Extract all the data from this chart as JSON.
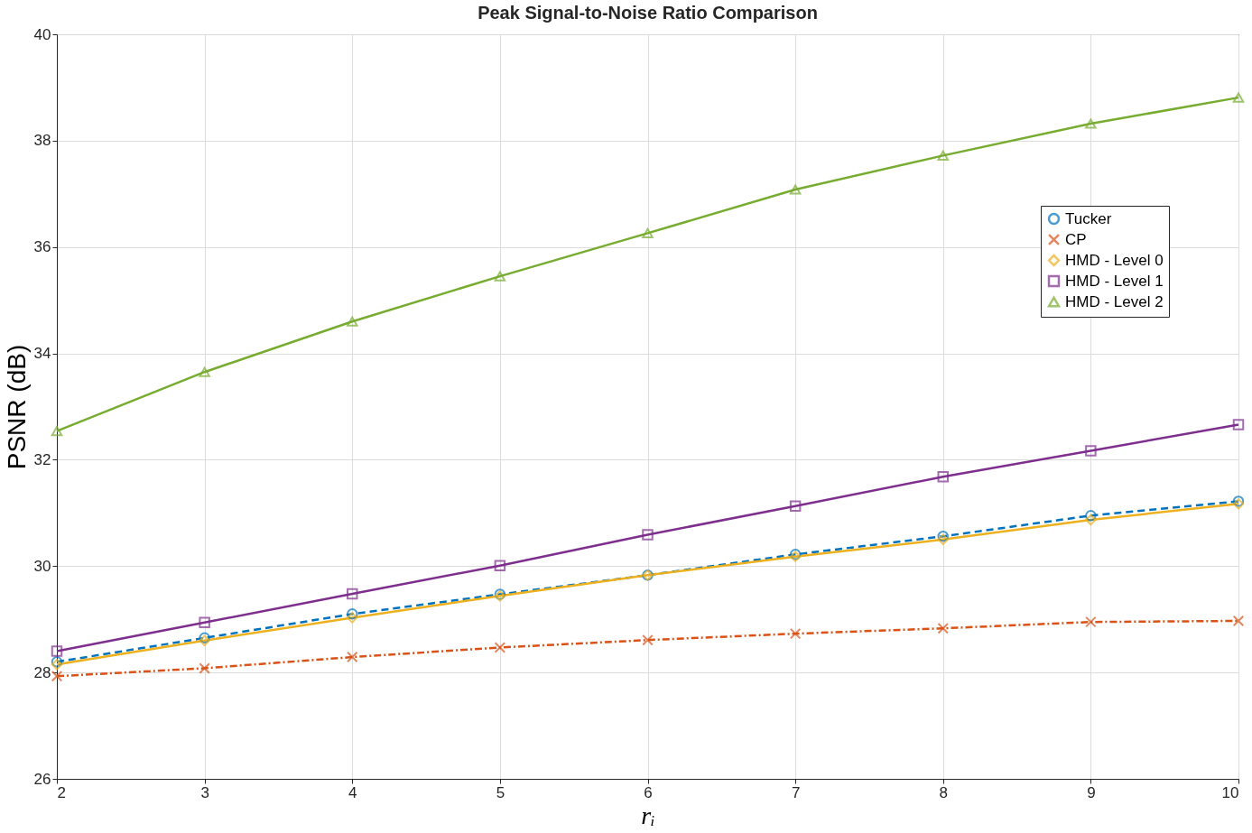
{
  "chart_data": {
    "type": "line",
    "title": "Peak Signal-to-Noise Ratio Comparison",
    "xlabel": "rᵢ",
    "ylabel": "PSNR (dB)",
    "x": [
      2,
      3,
      4,
      5,
      6,
      7,
      8,
      9,
      10
    ],
    "series": [
      {
        "name": "Tucker",
        "color": "#0072bd",
        "marker": "circle",
        "line_style": "dashed",
        "values": [
          28.2,
          28.65,
          29.1,
          29.47,
          29.83,
          30.22,
          30.56,
          30.95,
          31.22
        ]
      },
      {
        "name": "CP",
        "color": "#d95319",
        "marker": "cross",
        "line_style": "dashdot",
        "values": [
          27.93,
          28.08,
          28.29,
          28.47,
          28.61,
          28.73,
          28.83,
          28.95,
          28.97
        ]
      },
      {
        "name": "HMD - Level 0",
        "color": "#edb120",
        "marker": "diamond",
        "line_style": "solid",
        "values": [
          28.15,
          28.6,
          29.03,
          29.44,
          29.83,
          30.18,
          30.5,
          30.87,
          31.17
        ]
      },
      {
        "name": "HMD - Level 1",
        "color": "#7e2f8e",
        "marker": "square",
        "line_style": "solid",
        "values": [
          28.4,
          28.94,
          29.48,
          30.01,
          30.59,
          31.13,
          31.68,
          32.17,
          32.66
        ]
      },
      {
        "name": "HMD - Level 2",
        "color": "#77ac30",
        "marker": "triangle",
        "line_style": "solid",
        "values": [
          32.54,
          33.65,
          34.6,
          35.45,
          36.26,
          37.08,
          37.72,
          38.32,
          38.81
        ]
      }
    ],
    "xlim": [
      2,
      10
    ],
    "xticks": [
      2,
      3,
      4,
      5,
      6,
      7,
      8,
      9,
      10
    ],
    "ylim": [
      26,
      40
    ],
    "yticks": [
      26,
      28,
      30,
      32,
      34,
      36,
      38,
      40
    ],
    "grid": true,
    "legend": "top right"
  }
}
